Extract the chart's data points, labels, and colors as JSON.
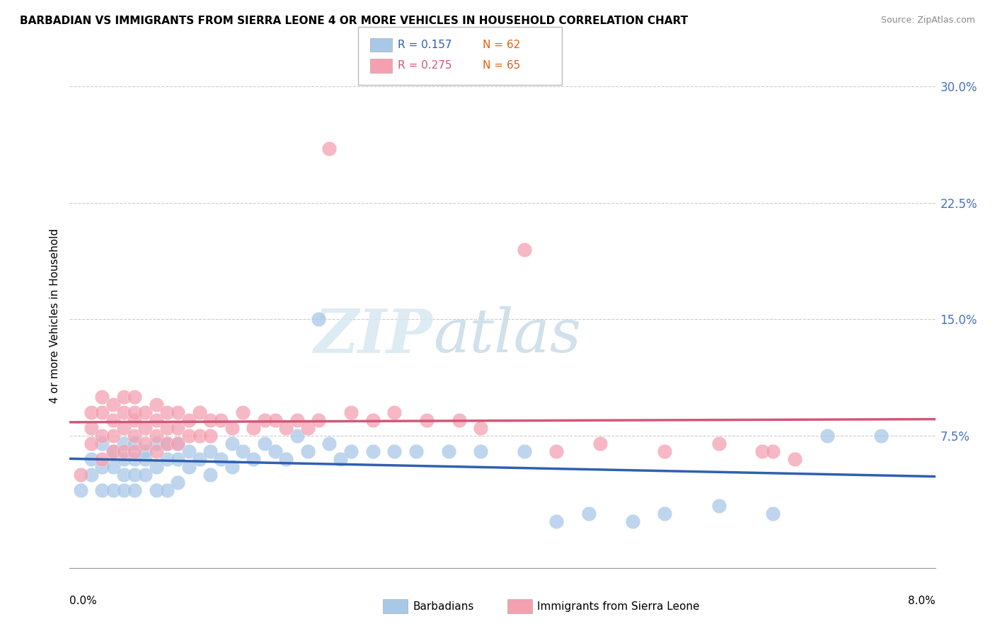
{
  "title": "BARBADIAN VS IMMIGRANTS FROM SIERRA LEONE 4 OR MORE VEHICLES IN HOUSEHOLD CORRELATION CHART",
  "source": "Source: ZipAtlas.com",
  "ylabel": "4 or more Vehicles in Household",
  "ytick_vals": [
    0.0,
    0.075,
    0.15,
    0.225,
    0.3
  ],
  "ytick_labels": [
    "",
    "7.5%",
    "15.0%",
    "22.5%",
    "30.0%"
  ],
  "xmin": 0.0,
  "xmax": 0.08,
  "ymin": -0.01,
  "ymax": 0.315,
  "legend_r1": "R = 0.157",
  "legend_n1": "N = 62",
  "legend_r2": "R = 0.275",
  "legend_n2": "N = 65",
  "blue_color": "#a8c8e8",
  "pink_color": "#f4a0b0",
  "blue_line_color": "#3060b0",
  "pink_line_color": "#d05878",
  "watermark_zip": "ZIP",
  "watermark_atlas": "atlas",
  "blue_x": [
    0.001,
    0.002,
    0.002,
    0.003,
    0.003,
    0.003,
    0.004,
    0.004,
    0.004,
    0.005,
    0.005,
    0.005,
    0.005,
    0.006,
    0.006,
    0.006,
    0.006,
    0.007,
    0.007,
    0.007,
    0.008,
    0.008,
    0.008,
    0.009,
    0.009,
    0.009,
    0.01,
    0.01,
    0.01,
    0.011,
    0.011,
    0.012,
    0.013,
    0.013,
    0.014,
    0.015,
    0.015,
    0.016,
    0.017,
    0.018,
    0.019,
    0.02,
    0.021,
    0.022,
    0.023,
    0.024,
    0.025,
    0.026,
    0.028,
    0.03,
    0.032,
    0.035,
    0.038,
    0.042,
    0.045,
    0.048,
    0.052,
    0.055,
    0.06,
    0.065,
    0.07,
    0.075
  ],
  "blue_y": [
    0.04,
    0.05,
    0.06,
    0.04,
    0.055,
    0.07,
    0.04,
    0.055,
    0.065,
    0.04,
    0.05,
    0.06,
    0.07,
    0.04,
    0.05,
    0.06,
    0.07,
    0.05,
    0.06,
    0.065,
    0.04,
    0.055,
    0.07,
    0.04,
    0.06,
    0.07,
    0.045,
    0.06,
    0.07,
    0.055,
    0.065,
    0.06,
    0.05,
    0.065,
    0.06,
    0.055,
    0.07,
    0.065,
    0.06,
    0.07,
    0.065,
    0.06,
    0.075,
    0.065,
    0.15,
    0.07,
    0.06,
    0.065,
    0.065,
    0.065,
    0.065,
    0.065,
    0.065,
    0.065,
    0.02,
    0.025,
    0.02,
    0.025,
    0.03,
    0.025,
    0.075,
    0.075
  ],
  "pink_x": [
    0.001,
    0.002,
    0.002,
    0.002,
    0.003,
    0.003,
    0.003,
    0.003,
    0.004,
    0.004,
    0.004,
    0.004,
    0.005,
    0.005,
    0.005,
    0.005,
    0.006,
    0.006,
    0.006,
    0.006,
    0.006,
    0.007,
    0.007,
    0.007,
    0.008,
    0.008,
    0.008,
    0.008,
    0.009,
    0.009,
    0.009,
    0.01,
    0.01,
    0.01,
    0.011,
    0.011,
    0.012,
    0.012,
    0.013,
    0.013,
    0.014,
    0.015,
    0.016,
    0.017,
    0.018,
    0.019,
    0.02,
    0.021,
    0.022,
    0.023,
    0.024,
    0.026,
    0.028,
    0.03,
    0.033,
    0.036,
    0.038,
    0.042,
    0.045,
    0.049,
    0.055,
    0.06,
    0.064,
    0.065,
    0.067
  ],
  "pink_y": [
    0.05,
    0.07,
    0.08,
    0.09,
    0.06,
    0.075,
    0.09,
    0.1,
    0.065,
    0.075,
    0.085,
    0.095,
    0.065,
    0.08,
    0.09,
    0.1,
    0.065,
    0.075,
    0.085,
    0.09,
    0.1,
    0.07,
    0.08,
    0.09,
    0.065,
    0.075,
    0.085,
    0.095,
    0.07,
    0.08,
    0.09,
    0.07,
    0.08,
    0.09,
    0.075,
    0.085,
    0.075,
    0.09,
    0.075,
    0.085,
    0.085,
    0.08,
    0.09,
    0.08,
    0.085,
    0.085,
    0.08,
    0.085,
    0.08,
    0.085,
    0.26,
    0.09,
    0.085,
    0.09,
    0.085,
    0.085,
    0.08,
    0.195,
    0.065,
    0.07,
    0.065,
    0.07,
    0.065,
    0.065,
    0.06
  ]
}
